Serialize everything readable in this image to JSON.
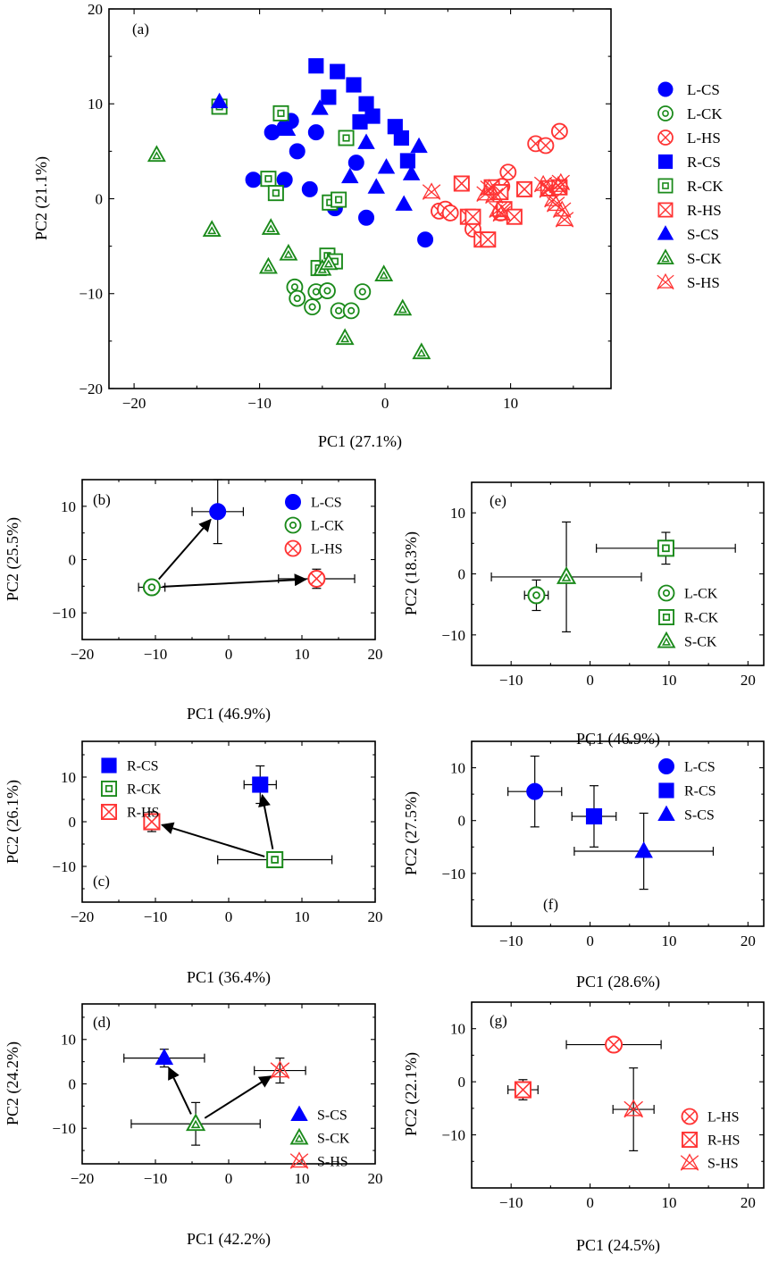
{
  "colors": {
    "L": "#0000ff",
    "CK": "#1a8a1a",
    "HS": "#ff3333"
  },
  "symbol_styles": {
    "L-CS": {
      "shape": "circle",
      "style": "filled",
      "color": "#0000ff"
    },
    "L-CK": {
      "shape": "circle",
      "style": "ring",
      "color": "#1a8a1a"
    },
    "L-HS": {
      "shape": "circle",
      "style": "x",
      "color": "#ff3333"
    },
    "R-CS": {
      "shape": "square",
      "style": "filled",
      "color": "#0000ff"
    },
    "R-CK": {
      "shape": "square",
      "style": "ring",
      "color": "#1a8a1a"
    },
    "R-HS": {
      "shape": "square",
      "style": "x",
      "color": "#ff3333"
    },
    "S-CS": {
      "shape": "triangle",
      "style": "filled",
      "color": "#0000ff"
    },
    "S-CK": {
      "shape": "triangle",
      "style": "ring",
      "color": "#1a8a1a"
    },
    "S-HS": {
      "shape": "triangle",
      "style": "x",
      "color": "#ff3333"
    }
  },
  "chart_data": [
    {
      "panel": "(a)",
      "type": "scatter",
      "xlabel": "PC1 (27.1%)",
      "ylabel": "PC2 (21.1%)",
      "xlim": [
        -22,
        18
      ],
      "ylim": [
        -20,
        20
      ],
      "xticks": [
        -20,
        -10,
        0,
        10
      ],
      "yticks": [
        -20,
        -10,
        0,
        10,
        20
      ],
      "legend": "outside-right",
      "series": [
        {
          "name": "L-CS",
          "points": [
            [
              -10.5,
              2
            ],
            [
              -9,
              7
            ],
            [
              -8,
              2
            ],
            [
              -8,
              7.5
            ],
            [
              -7.5,
              8.2
            ],
            [
              -7,
              5
            ],
            [
              -6,
              1
            ],
            [
              -5.5,
              7
            ],
            [
              -4,
              -1
            ],
            [
              -2.3,
              3.8
            ],
            [
              -1.5,
              -2
            ],
            [
              3.2,
              -4.3
            ]
          ]
        },
        {
          "name": "L-CK",
          "points": [
            [
              -7.2,
              -9.3
            ],
            [
              -7,
              -10.5
            ],
            [
              -5.8,
              -11.4
            ],
            [
              -5.5,
              -9.8
            ],
            [
              -4.6,
              -9.7
            ],
            [
              -3.7,
              -11.8
            ],
            [
              -2.7,
              -11.8
            ],
            [
              -1.8,
              -9.8
            ]
          ]
        },
        {
          "name": "L-HS",
          "points": [
            [
              4.3,
              -1.3
            ],
            [
              4.8,
              -1.1
            ],
            [
              5.2,
              -1.5
            ],
            [
              7,
              -3.2
            ],
            [
              9.2,
              -1.5
            ],
            [
              9.3,
              1.3
            ],
            [
              9.8,
              2.8
            ],
            [
              12,
              5.8
            ],
            [
              12.8,
              5.6
            ],
            [
              13.9,
              7.1
            ]
          ]
        },
        {
          "name": "R-CS",
          "points": [
            [
              -5.5,
              14
            ],
            [
              -4.5,
              10.7
            ],
            [
              -3.8,
              13.4
            ],
            [
              -2.5,
              12
            ],
            [
              -2,
              8.1
            ],
            [
              -1.5,
              10
            ],
            [
              -1,
              8.7
            ],
            [
              0.8,
              7.6
            ],
            [
              1.3,
              6.4
            ],
            [
              1.8,
              4
            ]
          ]
        },
        {
          "name": "R-CK",
          "points": [
            [
              -13.2,
              9.7
            ],
            [
              -9.3,
              2.1
            ],
            [
              -8.7,
              0.6
            ],
            [
              -8.3,
              9
            ],
            [
              -5.3,
              -7.3
            ],
            [
              -4.6,
              -6
            ],
            [
              -4.4,
              -0.4
            ],
            [
              -4,
              -6.6
            ],
            [
              -3.7,
              -0.1
            ],
            [
              -3.1,
              6.4
            ]
          ]
        },
        {
          "name": "R-HS",
          "points": [
            [
              6.1,
              1.6
            ],
            [
              6.6,
              -1.9
            ],
            [
              7,
              -1.9
            ],
            [
              7.7,
              -4.3
            ],
            [
              8.2,
              -4.3
            ],
            [
              8.5,
              1.2
            ],
            [
              9.2,
              0.7
            ],
            [
              9.5,
              -1.1
            ],
            [
              10.3,
              -1.9
            ],
            [
              11.1,
              1
            ],
            [
              13,
              1.1
            ],
            [
              13.9,
              1.2
            ]
          ]
        },
        {
          "name": "S-CS",
          "points": [
            [
              -13.2,
              10.2
            ],
            [
              -7.8,
              7.3
            ],
            [
              -5.2,
              9.5
            ],
            [
              -2.8,
              2.3
            ],
            [
              -1.5,
              5.9
            ],
            [
              -0.7,
              1.2
            ],
            [
              0.1,
              3.3
            ],
            [
              1.5,
              -0.6
            ],
            [
              2.1,
              2.6
            ],
            [
              2.7,
              5.5
            ]
          ]
        },
        {
          "name": "S-CK",
          "points": [
            [
              -18.2,
              4.6
            ],
            [
              -13.8,
              -3.3
            ],
            [
              -9.3,
              -7.2
            ],
            [
              -9.1,
              -3.1
            ],
            [
              -7.7,
              -5.8
            ],
            [
              -5,
              -7.4
            ],
            [
              -4.5,
              -6.8
            ],
            [
              -3.2,
              -14.7
            ],
            [
              -0.1,
              -8
            ],
            [
              1.4,
              -11.6
            ],
            [
              2.9,
              -16.2
            ]
          ]
        },
        {
          "name": "S-HS",
          "points": [
            [
              3.7,
              0.7
            ],
            [
              8,
              0.5
            ],
            [
              8.3,
              1.1
            ],
            [
              8.7,
              0.3
            ],
            [
              9,
              -1.2
            ],
            [
              9.3,
              -1.6
            ],
            [
              12.6,
              1.5
            ],
            [
              13,
              0.9
            ],
            [
              13.4,
              -0.1
            ],
            [
              13.6,
              -0.6
            ],
            [
              13.8,
              1.4
            ],
            [
              14,
              1.7
            ],
            [
              14.1,
              -1.2
            ],
            [
              14.3,
              -2.2
            ]
          ]
        }
      ]
    },
    {
      "panel": "(b)",
      "type": "scatter",
      "xlabel": "PC1 (46.9%)",
      "ylabel": "PC2 (25.5%)",
      "xlim": [
        -20,
        20
      ],
      "ylim": [
        -15,
        15
      ],
      "xticks": [
        -20,
        -10,
        0,
        10,
        20
      ],
      "yticks": [
        -10,
        0,
        10
      ],
      "legend": "top-right",
      "series": [
        {
          "name": "L-CS",
          "x": -1.5,
          "y": 9,
          "xerr": 3.5,
          "yerr": 6
        },
        {
          "name": "L-CK",
          "x": -10.5,
          "y": -5.2,
          "xerr": 1.8,
          "yerr": 1.2
        },
        {
          "name": "L-HS",
          "x": 12,
          "y": -3.6,
          "xerr": 5.2,
          "yerr": 1.8
        }
      ],
      "arrows": [
        [
          "L-CK",
          "L-CS"
        ],
        [
          "L-CK",
          "L-HS"
        ]
      ]
    },
    {
      "panel": "(c)",
      "type": "scatter",
      "xlabel": "PC1 (36.4%)",
      "ylabel": "PC2 (26.1%)",
      "xlim": [
        -20,
        20
      ],
      "ylim": [
        -18,
        18
      ],
      "xticks": [
        -20,
        -10,
        0,
        10,
        20
      ],
      "yticks": [
        -10,
        0,
        10
      ],
      "legend": "top-left",
      "series": [
        {
          "name": "R-CS",
          "x": 4.3,
          "y": 8.3,
          "xerr": 2.2,
          "yerr": 4.2
        },
        {
          "name": "R-CK",
          "x": 6.3,
          "y": -8.5,
          "xerr": 7.8,
          "yerr": 1.5
        },
        {
          "name": "R-HS",
          "x": -10.5,
          "y": 0,
          "xerr": 0.8,
          "yerr": 2.2
        }
      ],
      "arrows": [
        [
          "R-CK",
          "R-CS"
        ],
        [
          "R-CK",
          "R-HS"
        ]
      ]
    },
    {
      "panel": "(d)",
      "type": "scatter",
      "xlabel": "PC1 (42.2%)",
      "ylabel": "PC2 (24.2%)",
      "xlim": [
        -20,
        20
      ],
      "ylim": [
        -18,
        18
      ],
      "xticks": [
        -20,
        -10,
        0,
        10,
        20
      ],
      "yticks": [
        -10,
        0,
        10
      ],
      "legend": "bottom-right",
      "series": [
        {
          "name": "S-CS",
          "x": -8.8,
          "y": 5.8,
          "xerr": 5.5,
          "yerr": 2
        },
        {
          "name": "S-CK",
          "x": -4.5,
          "y": -9,
          "xerr": 8.8,
          "yerr": 4.8
        },
        {
          "name": "S-HS",
          "x": 7,
          "y": 3,
          "xerr": 3.5,
          "yerr": 2.8
        }
      ],
      "arrows": [
        [
          "S-CK",
          "S-CS"
        ],
        [
          "S-CK",
          "S-HS"
        ]
      ]
    },
    {
      "panel": "(e)",
      "type": "scatter",
      "xlabel": "PC1 (46.9%)",
      "ylabel": "PC2 (18.3%)",
      "xlim": [
        -15,
        22
      ],
      "ylim": [
        -15,
        15
      ],
      "xticks": [
        -10,
        0,
        10,
        20
      ],
      "yticks": [
        -10,
        0,
        10
      ],
      "legend": "bottom-right",
      "series": [
        {
          "name": "L-CK",
          "x": -6.8,
          "y": -3.5,
          "xerr": 1.5,
          "yerr": 2.5
        },
        {
          "name": "R-CK",
          "x": 9.6,
          "y": 4.2,
          "xerr": 8.8,
          "yerr": 2.6
        },
        {
          "name": "S-CK",
          "x": -3,
          "y": -0.5,
          "xerr": 9.5,
          "yerr": 9
        }
      ]
    },
    {
      "panel": "(f)",
      "type": "scatter",
      "xlabel": "PC1 (28.6%)",
      "ylabel": "PC2 (27.5%)",
      "xlim": [
        -15,
        22
      ],
      "ylim": [
        -20,
        15
      ],
      "xticks": [
        -10,
        0,
        10,
        20
      ],
      "yticks": [
        -10,
        0,
        10
      ],
      "legend": "top-right",
      "series": [
        {
          "name": "L-CS",
          "x": -7,
          "y": 5.5,
          "xerr": 3.4,
          "yerr": 6.7
        },
        {
          "name": "R-CS",
          "x": 0.5,
          "y": 0.8,
          "xerr": 2.8,
          "yerr": 5.8
        },
        {
          "name": "S-CS",
          "x": 6.8,
          "y": -5.8,
          "xerr": 8.8,
          "yerr": 7.2
        }
      ]
    },
    {
      "panel": "(g)",
      "type": "scatter",
      "xlabel": "PC1 (24.5%)",
      "ylabel": "PC2 (22.1%)",
      "xlim": [
        -15,
        22
      ],
      "ylim": [
        -20,
        15
      ],
      "xticks": [
        -10,
        0,
        10,
        20
      ],
      "yticks": [
        -10,
        0,
        10
      ],
      "legend": "bottom-right",
      "series": [
        {
          "name": "L-HS",
          "x": 3,
          "y": 7,
          "xerr": 6,
          "yerr": 1.2
        },
        {
          "name": "R-HS",
          "x": -8.5,
          "y": -1.5,
          "xerr": 1.9,
          "yerr": 1.9
        },
        {
          "name": "S-HS",
          "x": 5.5,
          "y": -5.2,
          "xerr": 2.6,
          "yerr": 7.8
        }
      ]
    }
  ]
}
